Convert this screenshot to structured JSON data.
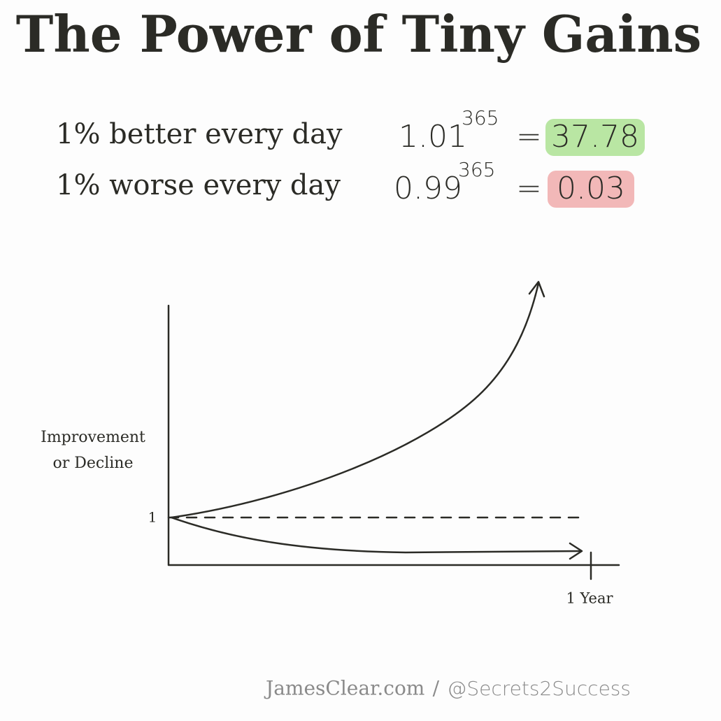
{
  "header": {
    "title": "The Power of Tiny Gains"
  },
  "equations": [
    {
      "label": "1% better every day",
      "base": "1.01",
      "exponent": "365",
      "equals": "=",
      "result": "37.78"
    },
    {
      "label": "1% worse every day",
      "base": "0.99",
      "exponent": "365",
      "equals": "=",
      "result": "0.03"
    }
  ],
  "diagram": {
    "y_label": [
      "Improvement",
      "or Decline"
    ],
    "y_tick": "1",
    "x_label": "1 Year"
  },
  "footer": {
    "site": "JamesClear.com",
    "separator": "/",
    "handle": "@Secrets2Success"
  }
}
